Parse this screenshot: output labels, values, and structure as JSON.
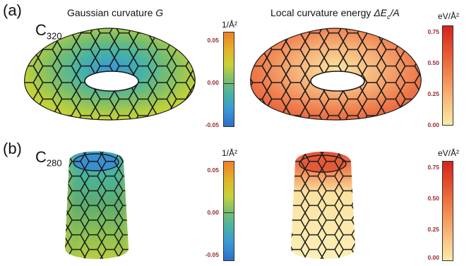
{
  "rows": [
    {
      "panel_label": "(a)",
      "molecule_base": "C",
      "molecule_sub": "320",
      "heading_left_text": "Gaussian curvature ",
      "heading_left_italic": "G",
      "heading_right_text": "Local curvature energy ",
      "heading_right_italic": "ΔE",
      "heading_right_sub": "c",
      "heading_right_tail": "/A",
      "colorbar_left": {
        "unit": "1/Å²",
        "ticks": [
          "0.05",
          "0.00",
          "-0.05"
        ],
        "range": [
          -0.05,
          0.06
        ]
      },
      "colorbar_right": {
        "unit": "eV/Å²",
        "ticks": [
          "0.75",
          "0.50",
          "0.25",
          "0.00"
        ],
        "range": [
          0,
          0.78
        ]
      }
    },
    {
      "panel_label": "(b)",
      "molecule_base": "C",
      "molecule_sub": "280",
      "colorbar_left": {
        "unit": "1/Å²",
        "ticks": [
          "0.05",
          "0.00",
          "-0.05"
        ],
        "range": [
          -0.06,
          0.06
        ]
      },
      "colorbar_right": {
        "unit": "eV/Å²",
        "ticks": [
          "0.75",
          "0.50",
          "0.25",
          "0.00"
        ],
        "range": [
          0,
          0.78
        ]
      }
    }
  ],
  "colors": {
    "gaussian": [
      "#2d6ec7",
      "#47b3a5",
      "#7cbf6a",
      "#c8d23a",
      "#e3b327",
      "#f07e2a"
    ],
    "energy": [
      "#fbeaa9",
      "#f8bc7c",
      "#f2894f",
      "#e6542f",
      "#d6221c"
    ]
  }
}
